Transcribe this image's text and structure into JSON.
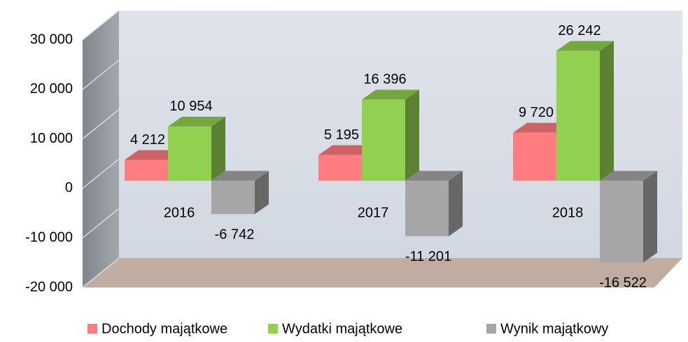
{
  "chart_data": {
    "type": "bar3d",
    "categories": [
      "2016",
      "2017",
      "2018"
    ],
    "series": [
      {
        "name": "Dochody majątkowe",
        "color": "#FF7C80",
        "values": [
          4212,
          5195,
          9720
        ],
        "value_labels": [
          "4 212",
          "5 195",
          "9 720"
        ]
      },
      {
        "name": "Wydatki majątkowe",
        "color": "#92D050",
        "values": [
          10954,
          16396,
          26242
        ],
        "value_labels": [
          "10 954",
          "16 396",
          "26 242"
        ]
      },
      {
        "name": "Wynik majątkowy",
        "color": "#A6A6A6",
        "values": [
          -6742,
          -11201,
          -16522
        ],
        "value_labels": [
          "-6 742",
          "-11 201",
          "-16 522"
        ]
      }
    ],
    "ylim": [
      -20000,
      30000
    ],
    "yticks": [
      {
        "value": -20000,
        "label": "-20 000"
      },
      {
        "value": -10000,
        "label": "-10 000"
      },
      0,
      {
        "value": 10000,
        "label": "10 000"
      },
      {
        "value": 20000,
        "label": "20 000"
      },
      {
        "value": 30000,
        "label": "30 000"
      }
    ],
    "grid": true,
    "legend": "bottom"
  }
}
